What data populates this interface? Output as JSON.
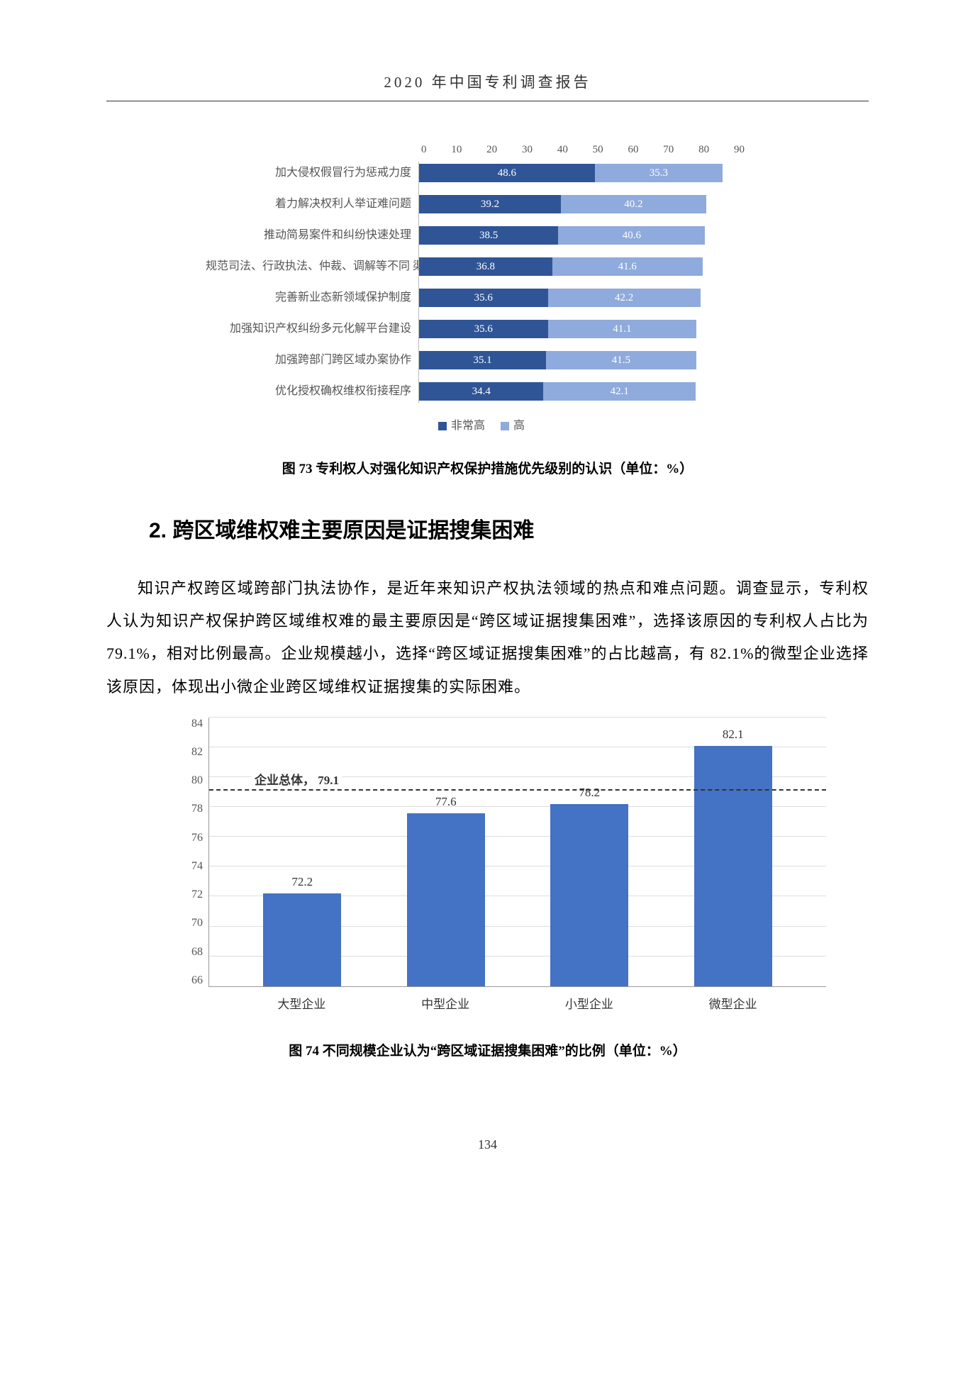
{
  "page": {
    "header": "2020 年中国专利调查报告",
    "page_number": "134"
  },
  "chart1": {
    "type": "stacked-horizontal-bar",
    "xlim": [
      0,
      90
    ],
    "xtick_step": 10,
    "xticks": [
      "0",
      "10",
      "20",
      "30",
      "40",
      "50",
      "60",
      "70",
      "80",
      "90"
    ],
    "series": [
      {
        "name": "非常高",
        "color": "#2f5597"
      },
      {
        "name": "高",
        "color": "#8faadc"
      }
    ],
    "bg_color": "#ffffff",
    "rows": [
      {
        "label": "加大侵权假冒行为惩戒力度",
        "v1": 48.6,
        "v2": 35.3
      },
      {
        "label": "着力解决权利人举证难问题",
        "v1": 39.2,
        "v2": 40.2
      },
      {
        "label": "推动简易案件和纠纷快速处理",
        "v1": 38.5,
        "v2": 40.6
      },
      {
        "label": "规范司法、行政执法、仲裁、调解等不同 渠…",
        "v1": 36.8,
        "v2": 41.6
      },
      {
        "label": "完善新业态新领域保护制度",
        "v1": 35.6,
        "v2": 42.2
      },
      {
        "label": "加强知识产权纠纷多元化解平台建设",
        "v1": 35.6,
        "v2": 41.1
      },
      {
        "label": "加强跨部门跨区域办案协作",
        "v1": 35.1,
        "v2": 41.5
      },
      {
        "label": "优化授权确权维权衔接程序",
        "v1": 34.4,
        "v2": 42.1
      }
    ],
    "caption": "图 73  专利权人对强化知识产权保护措施优先级别的认识（单位：%）"
  },
  "section": {
    "heading": "2. 跨区域维权难主要原因是证据搜集困难",
    "paragraph": "知识产权跨区域跨部门执法协作，是近年来知识产权执法领域的热点和难点问题。调查显示，专利权人认为知识产权保护跨区域维权难的最主要原因是“跨区域证据搜集困难”，选择该原因的专利权人占比为 79.1%，相对比例最高。企业规模越小，选择“跨区域证据搜集困难”的占比越高，有 82.1%的微型企业选择该原因，体现出小微企业跨区域维权证据搜集的实际困难。"
  },
  "chart2": {
    "type": "bar",
    "ylim": [
      66,
      84
    ],
    "ytick_step": 2,
    "yticks": [
      "84",
      "82",
      "80",
      "78",
      "76",
      "74",
      "72",
      "70",
      "68",
      "66"
    ],
    "bar_color": "#4472c4",
    "grid_color": "#dddddd",
    "ref_line": {
      "label": "企业总体， 79.1",
      "value": 79.1
    },
    "bars": [
      {
        "label": "大型企业",
        "value": 72.2
      },
      {
        "label": "中型企业",
        "value": 77.6
      },
      {
        "label": "小型企业",
        "value": 78.2
      },
      {
        "label": "微型企业",
        "value": 82.1
      }
    ],
    "caption": "图 74  不同规模企业认为“跨区域证据搜集困难”的比例（单位：%）"
  }
}
